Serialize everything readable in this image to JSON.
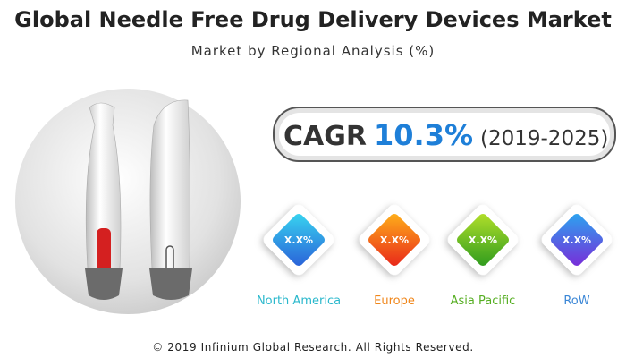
{
  "header": {
    "title": "Global Needle Free Drug Delivery Devices Market",
    "subtitle": "Market by Regional Analysis (%)"
  },
  "cagr": {
    "label": "CAGR",
    "value": "10.3%",
    "period": "(2019-2025)"
  },
  "regions": [
    {
      "name": "North America",
      "value": "X.X%"
    },
    {
      "name": "Europe",
      "value": "X.X%"
    },
    {
      "name": "Asia Pacific",
      "value": "X.X%"
    },
    {
      "name": "RoW",
      "value": "X.X%"
    }
  ],
  "footer": "© 2019 Infinium Global Research. All Rights Reserved."
}
